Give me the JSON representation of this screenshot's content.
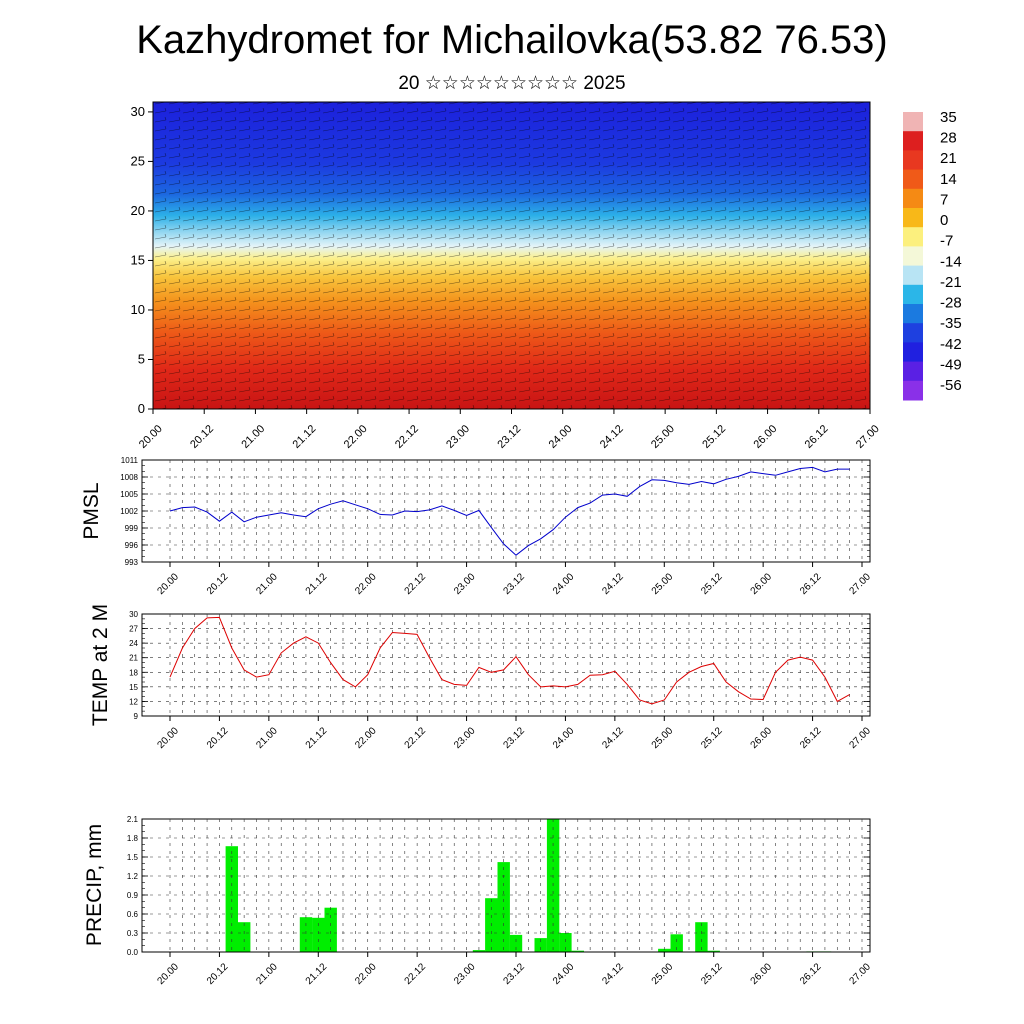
{
  "header": {
    "title": "Kazhydromet for Michailovka(53.82 76.53)",
    "subtitle": "20 ☆☆☆☆☆☆☆☆☆ 2025"
  },
  "colors": {
    "pmsl_line": "#0000cc",
    "temp_line": "#dd0000",
    "precip_bar": "#00ee00",
    "grid": "#333333"
  },
  "chart_data": [
    {
      "type": "heatmap",
      "name": "cross-section",
      "x_ticks": [
        "20.00",
        "20.12",
        "21.00",
        "21.12",
        "22.00",
        "22.12",
        "23.00",
        "23.12",
        "24.00",
        "24.12",
        "25.00",
        "25.12",
        "26.00",
        "26.12",
        "27.00"
      ],
      "y_ticks": [
        0,
        5,
        10,
        15,
        20,
        25,
        30
      ],
      "ylim": [
        0,
        31
      ],
      "colorbar_ticks": [
        "35",
        "28",
        "21",
        "14",
        "7",
        "0",
        "-7",
        "-14",
        "-21",
        "-28",
        "-35",
        "-42",
        "-49",
        "-56"
      ],
      "colorbar_colors": [
        "#f0b4b4",
        "#dd1f1f",
        "#e83820",
        "#f05a18",
        "#f58a14",
        "#f8b818",
        "#fcf07e",
        "#f4f8d8",
        "#b8e4f4",
        "#2bb6e8",
        "#1b7ae0",
        "#1e40e0",
        "#2020e0",
        "#5a20e4",
        "#8a30e8"
      ]
    },
    {
      "type": "line",
      "name": "PMSL",
      "ylabel": "PMSL",
      "ylim": [
        993,
        1011
      ],
      "y_ticks": [
        993,
        996,
        999,
        1002,
        1005,
        1008,
        1011
      ],
      "x_ticks": [
        "20.00",
        "20.12",
        "21.00",
        "21.12",
        "22.00",
        "22.12",
        "23.00",
        "23.12",
        "24.00",
        "24.12",
        "25.00",
        "25.12",
        "26.00",
        "26.12",
        "27.00"
      ],
      "x": [
        0,
        3,
        6,
        9,
        12,
        15,
        18,
        21,
        24,
        27,
        30,
        33,
        36,
        39,
        42,
        45,
        48,
        51,
        54,
        57,
        60,
        63,
        66,
        69,
        72,
        75,
        78,
        81,
        84,
        87,
        90,
        93,
        96,
        99,
        102,
        105,
        108,
        111,
        114,
        117,
        120,
        123,
        126,
        129,
        132,
        135,
        138,
        141,
        144,
        147,
        150,
        153,
        156,
        159,
        162,
        165
      ],
      "values": [
        1002,
        1002.6,
        1002.7,
        1001.8,
        1000.2,
        1001.8,
        1000.1,
        1000.9,
        1001.3,
        1001.7,
        1001.3,
        1001,
        1002.4,
        1003.2,
        1003.8,
        1003.1,
        1002.4,
        1001.4,
        1001.3,
        1002,
        1001.9,
        1002.2,
        1002.9,
        1002.1,
        1001.2,
        1002.1,
        999.1,
        996.2,
        994.2,
        995.9,
        997.1,
        998.7,
        1000.9,
        1002.6,
        1003.4,
        1004.8,
        1005,
        1004.6,
        1006.3,
        1007.5,
        1007.4,
        1007,
        1006.7,
        1007.2,
        1006.8,
        1007.6,
        1008.1,
        1008.9,
        1008.6,
        1008.3,
        1008.9,
        1009.5,
        1009.7,
        1008.9,
        1009.4,
        1009.4
      ]
    },
    {
      "type": "line",
      "name": "TEMP at 2 M",
      "ylabel": "TEMP at 2 M",
      "ylim": [
        9,
        30
      ],
      "y_ticks": [
        9,
        12,
        15,
        18,
        21,
        24,
        27,
        30
      ],
      "x_ticks": [
        "20.00",
        "20.12",
        "21.00",
        "21.12",
        "22.00",
        "22.12",
        "23.00",
        "23.12",
        "24.00",
        "24.12",
        "25.00",
        "25.12",
        "26.00",
        "26.12",
        "27.00"
      ],
      "x": [
        0,
        3,
        6,
        9,
        12,
        15,
        18,
        21,
        24,
        27,
        30,
        33,
        36,
        39,
        42,
        45,
        48,
        51,
        54,
        57,
        60,
        63,
        66,
        69,
        72,
        75,
        78,
        81,
        84,
        87,
        90,
        93,
        96,
        99,
        102,
        105,
        108,
        111,
        114,
        117,
        120,
        123,
        126,
        129,
        132,
        135,
        138,
        141,
        144,
        147,
        150,
        153,
        156,
        159,
        162,
        165
      ],
      "values": [
        17,
        23,
        27,
        29.2,
        29.3,
        23,
        18.5,
        17,
        17.5,
        22,
        24,
        25.3,
        24,
        20,
        16.5,
        15,
        17.5,
        23,
        26.2,
        26,
        25.8,
        21,
        16.5,
        15.5,
        15.3,
        19,
        18,
        18.5,
        21.2,
        17.5,
        15,
        15.2,
        15,
        15.5,
        17.4,
        17.5,
        18.2,
        15.5,
        12.3,
        11.5,
        12.3,
        16,
        18,
        19.2,
        19.8,
        16,
        14,
        12.5,
        12.4,
        18,
        20.5,
        21.1,
        20.5,
        17,
        12,
        13.4
      ]
    },
    {
      "type": "bar",
      "name": "PRECIP, mm",
      "ylabel": "PRECIP, mm",
      "ylim": [
        0,
        2.1
      ],
      "y_ticks": [
        "0.0",
        "0.3",
        "0.6",
        "0.9",
        "1.2",
        "1.5",
        "1.8",
        "2.1"
      ],
      "x_ticks": [
        "20.00",
        "20.12",
        "21.00",
        "21.12",
        "22.00",
        "22.12",
        "23.00",
        "23.12",
        "24.00",
        "24.12",
        "25.00",
        "25.12",
        "26.00",
        "26.12",
        "27.00"
      ],
      "x": [
        0,
        3,
        6,
        9,
        12,
        15,
        18,
        21,
        24,
        27,
        30,
        33,
        36,
        39,
        42,
        45,
        48,
        51,
        54,
        57,
        60,
        63,
        66,
        69,
        72,
        75,
        78,
        81,
        84,
        87,
        90,
        93,
        96,
        99,
        102,
        105,
        108,
        111,
        114,
        117,
        120,
        123,
        126,
        129,
        132,
        135,
        138,
        141,
        144,
        147,
        150,
        153,
        156,
        159,
        162,
        165
      ],
      "values": [
        0,
        0,
        0,
        0,
        0,
        1.67,
        0.47,
        0,
        0,
        0,
        0,
        0.55,
        0.54,
        0.7,
        0,
        0,
        0,
        0,
        0,
        0,
        0,
        0,
        0,
        0,
        0,
        0.03,
        0.85,
        1.42,
        0.27,
        0,
        0.22,
        2.1,
        0.3,
        0.02,
        0,
        0,
        0,
        0,
        0,
        0,
        0.05,
        0.28,
        0,
        0.47,
        0.02,
        0,
        0,
        0,
        0,
        0,
        0,
        0,
        0.01,
        0.01,
        0,
        0
      ]
    }
  ]
}
